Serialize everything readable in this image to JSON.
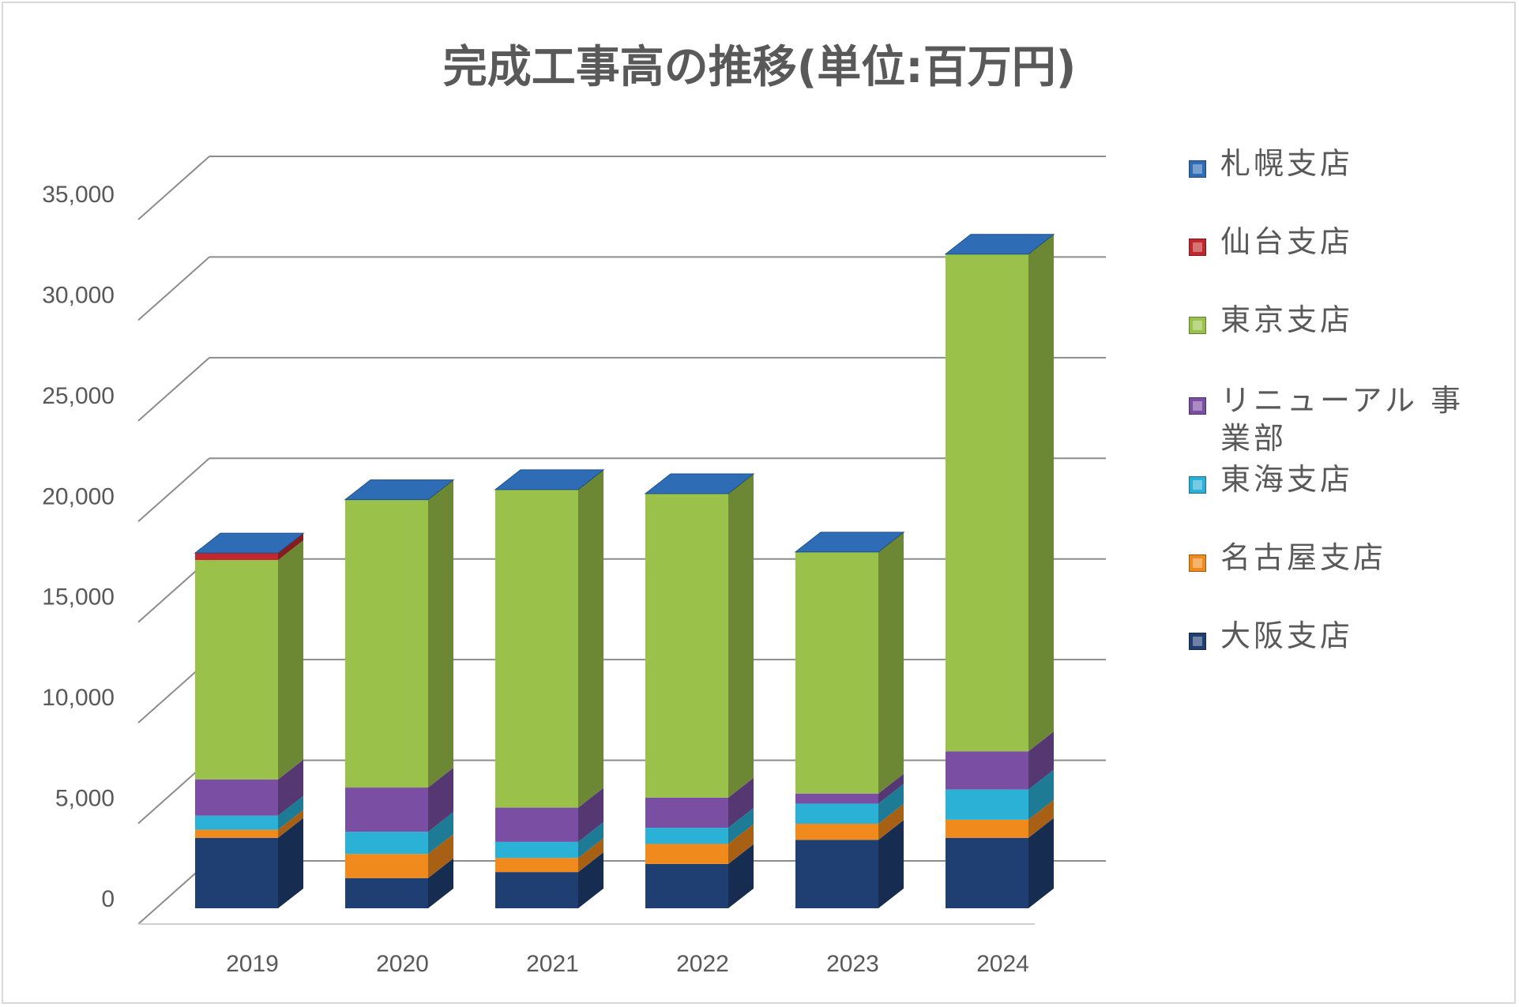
{
  "chart_data": {
    "type": "bar",
    "stacked": true,
    "three_d": true,
    "title": "完成工事高の推移(単位:百万円)",
    "xlabel": "",
    "ylabel": "",
    "categories": [
      "2019",
      "2020",
      "2021",
      "2022",
      "2023",
      "2024"
    ],
    "ylim": [
      0,
      35000
    ],
    "yticks": [
      0,
      5000,
      10000,
      15000,
      20000,
      25000,
      30000,
      35000
    ],
    "ytick_labels": [
      "0",
      "5,000",
      "10,000",
      "15,000",
      "20,000",
      "25,000",
      "30,000",
      "35,000"
    ],
    "grid": true,
    "legend_position": "right",
    "series": [
      {
        "name": "大阪支店",
        "color": "#1f3f73",
        "values": [
          3500,
          1500,
          1800,
          2200,
          3400,
          3500
        ]
      },
      {
        "name": "名古屋支店",
        "color": "#f08a1c",
        "values": [
          400,
          1200,
          700,
          1000,
          800,
          900
        ]
      },
      {
        "name": "東海支店",
        "color": "#2bb0d6",
        "values": [
          700,
          1100,
          800,
          800,
          1000,
          1500
        ]
      },
      {
        "name": "リニューアル事業部",
        "color": "#7a4fa3",
        "values": [
          1800,
          2200,
          1700,
          1500,
          500,
          1900
        ]
      },
      {
        "name": "東京支店",
        "color": "#9ac24a",
        "values": [
          10900,
          14300,
          15800,
          15100,
          12000,
          24700
        ]
      },
      {
        "name": "仙台支店",
        "color": "#c0282d",
        "values": [
          350,
          0,
          0,
          0,
          0,
          0
        ]
      },
      {
        "name": "札幌支店",
        "color": "#2e6db5",
        "values": [
          0,
          0,
          0,
          0,
          0,
          0
        ]
      }
    ],
    "legend": [
      {
        "label": "札幌支店",
        "color": "#2e6db5"
      },
      {
        "label": "仙台支店",
        "color": "#c0282d"
      },
      {
        "label": "東京支店",
        "color": "#9ac24a"
      },
      {
        "label": "リニューアル 事業部",
        "color": "#7a4fa3"
      },
      {
        "label": "東海支店",
        "color": "#2bb0d6"
      },
      {
        "label": "名古屋支店",
        "color": "#f08a1c"
      },
      {
        "label": "大阪支店",
        "color": "#1f3f73"
      }
    ]
  }
}
